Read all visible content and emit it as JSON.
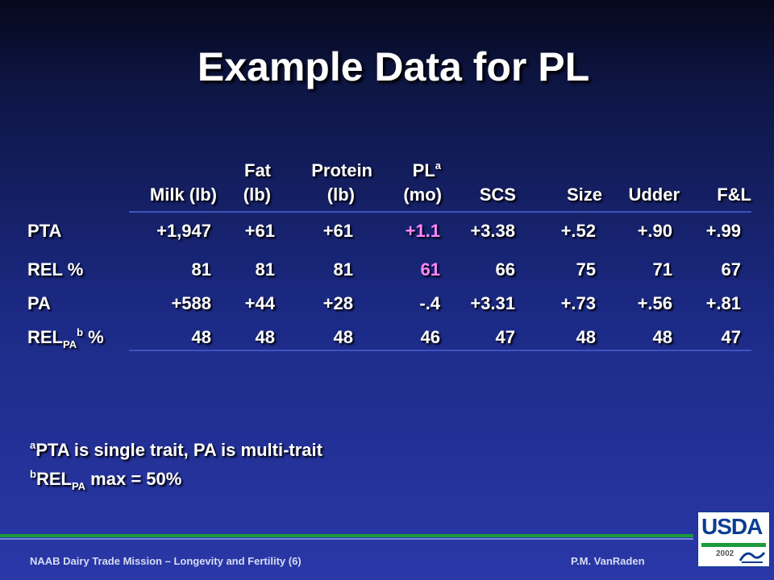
{
  "title": "Example Data for PL",
  "headers": {
    "milk": {
      "line2": "Milk (lb)"
    },
    "fat": {
      "line1": "Fat",
      "line2": "(lb)"
    },
    "protein": {
      "line1": "Protein",
      "line2": "(lb)"
    },
    "pl": {
      "line1": "PL",
      "sup": "a",
      "line2": "(mo)"
    },
    "scs": {
      "line2": "SCS"
    },
    "size": {
      "line2": "Size"
    },
    "udder": {
      "line2": "Udder"
    },
    "fl": {
      "line2": "F&L"
    }
  },
  "rows": [
    {
      "label": "PTA",
      "values": [
        "+1,947",
        "+61",
        "+61",
        "+1.1",
        "+3.38",
        "+.52",
        "+.90",
        "+.99"
      ]
    },
    {
      "label": "REL %",
      "values": [
        "81",
        "81",
        "81",
        "61",
        "66",
        "75",
        "71",
        "67"
      ]
    },
    {
      "label": "PA",
      "values": [
        "+588",
        "+44",
        "+28",
        "-.4",
        "+3.31",
        "+.73",
        "+.56",
        "+.81"
      ]
    },
    {
      "label_main": "REL",
      "label_sub": "PA",
      "label_sup": "b",
      "label_tail": " %",
      "values": [
        "48",
        "48",
        "48",
        "46",
        "47",
        "48",
        "48",
        "47"
      ]
    }
  ],
  "highlight_color": "#ff88ff",
  "footnotes": {
    "a": {
      "sup": "a",
      "text": "PTA is single trait, PA is multi-trait"
    },
    "b": {
      "sup": "b",
      "main": "REL",
      "sub": "PA",
      "tail": " max = 50%"
    }
  },
  "footer": {
    "left": "NAAB Dairy  Trade Mission – Longevity and Fertility (6)",
    "right": "P.M. VanRaden"
  },
  "logo": {
    "text": "USDA",
    "year": "2002",
    "mark": "aes"
  }
}
